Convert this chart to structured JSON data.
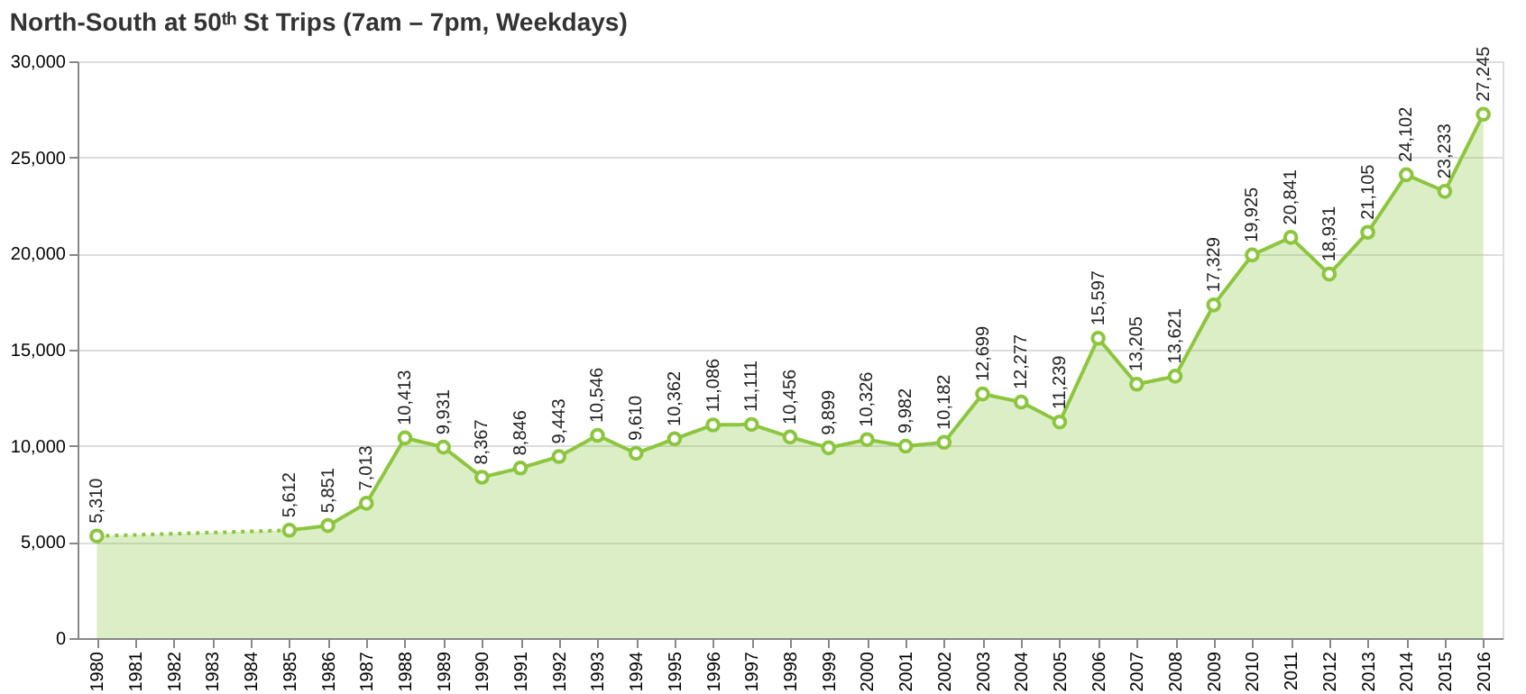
{
  "chart_data": {
    "type": "area",
    "title": "North-South at 50ᵗʰ St Trips (7am – 7pm, Weekdays)",
    "categories": [
      "1980",
      "1981",
      "1982",
      "1983",
      "1984",
      "1985",
      "1986",
      "1987",
      "1988",
      "1989",
      "1990",
      "1991",
      "1992",
      "1993",
      "1994",
      "1995",
      "1996",
      "1997",
      "1998",
      "1999",
      "2000",
      "2001",
      "2002",
      "2003",
      "2004",
      "2005",
      "2006",
      "2007",
      "2008",
      "2009",
      "2010",
      "2011",
      "2012",
      "2013",
      "2014",
      "2015",
      "2016"
    ],
    "series": [
      {
        "color": "#8cc63e",
        "values": [
          5310,
          null,
          null,
          null,
          null,
          5612,
          5851,
          7013,
          10413,
          9931,
          8367,
          8846,
          9443,
          10546,
          9610,
          10362,
          11086,
          11111,
          10456,
          9899,
          10326,
          9982,
          10182,
          12699,
          12277,
          11239,
          15597,
          13205,
          13621,
          17329,
          19925,
          20841,
          18931,
          21105,
          24102,
          23233,
          27245
        ],
        "value_labels": [
          "5,310",
          null,
          null,
          null,
          null,
          "5,612",
          "5,851",
          "7,013",
          "10,413",
          "9,931",
          "8,367",
          "8,846",
          "9,443",
          "10,546",
          "9,610",
          "10,362",
          "11,086",
          "11,111",
          "10,456",
          "9,899",
          "10,326",
          "9,982",
          "10,182",
          "12,699",
          "12,277",
          "11,239",
          "15,597",
          "13,205",
          "13,621",
          "17,329",
          "19,925",
          "20,841",
          "18,931",
          "21,105",
          "24,102",
          "23,233",
          "27,245"
        ]
      }
    ],
    "ylim": [
      0,
      30000
    ],
    "yticks": [
      0,
      {
        "value": 5000,
        "label": "5,000"
      },
      {
        "value": 10000,
        "label": "10,000"
      },
      {
        "value": 15000,
        "label": "15,000"
      },
      {
        "value": 20000,
        "label": "20,000"
      },
      {
        "value": 25000,
        "label": "25,000"
      },
      {
        "value": 30000,
        "label": "30,000"
      }
    ],
    "grid": "y",
    "marker": "circle",
    "line_style": "solid"
  }
}
